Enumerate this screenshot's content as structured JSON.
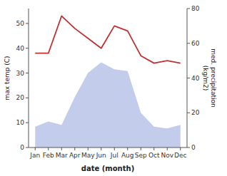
{
  "chart_data": {
    "type": "line",
    "xlabel": "date (month)",
    "ylabel": "max temp (C)",
    "y2label": "med. precipitation\n(kg/m2)",
    "categories": [
      "Jan",
      "Feb",
      "Mar",
      "Apr",
      "May",
      "Jun",
      "Jul",
      "Aug",
      "Sep",
      "Oct",
      "Nov",
      "Dec"
    ],
    "series": [
      {
        "type": "area",
        "axis": "y2",
        "color": "#b8c4e8",
        "values": [
          12,
          15,
          13,
          29,
          43,
          49,
          45,
          44,
          20,
          12,
          11,
          13
        ]
      },
      {
        "type": "line",
        "color": "#c03030",
        "values": [
          38,
          38,
          53,
          48,
          44,
          40,
          49,
          47,
          37,
          34,
          35,
          34
        ]
      }
    ],
    "ylim": [
      0,
      56
    ],
    "yticks": [
      0,
      10,
      20,
      30,
      40,
      50
    ],
    "y2lim": [
      0,
      80
    ],
    "y2ticks": [
      0,
      20,
      40,
      60,
      80
    ],
    "grid": false
  }
}
